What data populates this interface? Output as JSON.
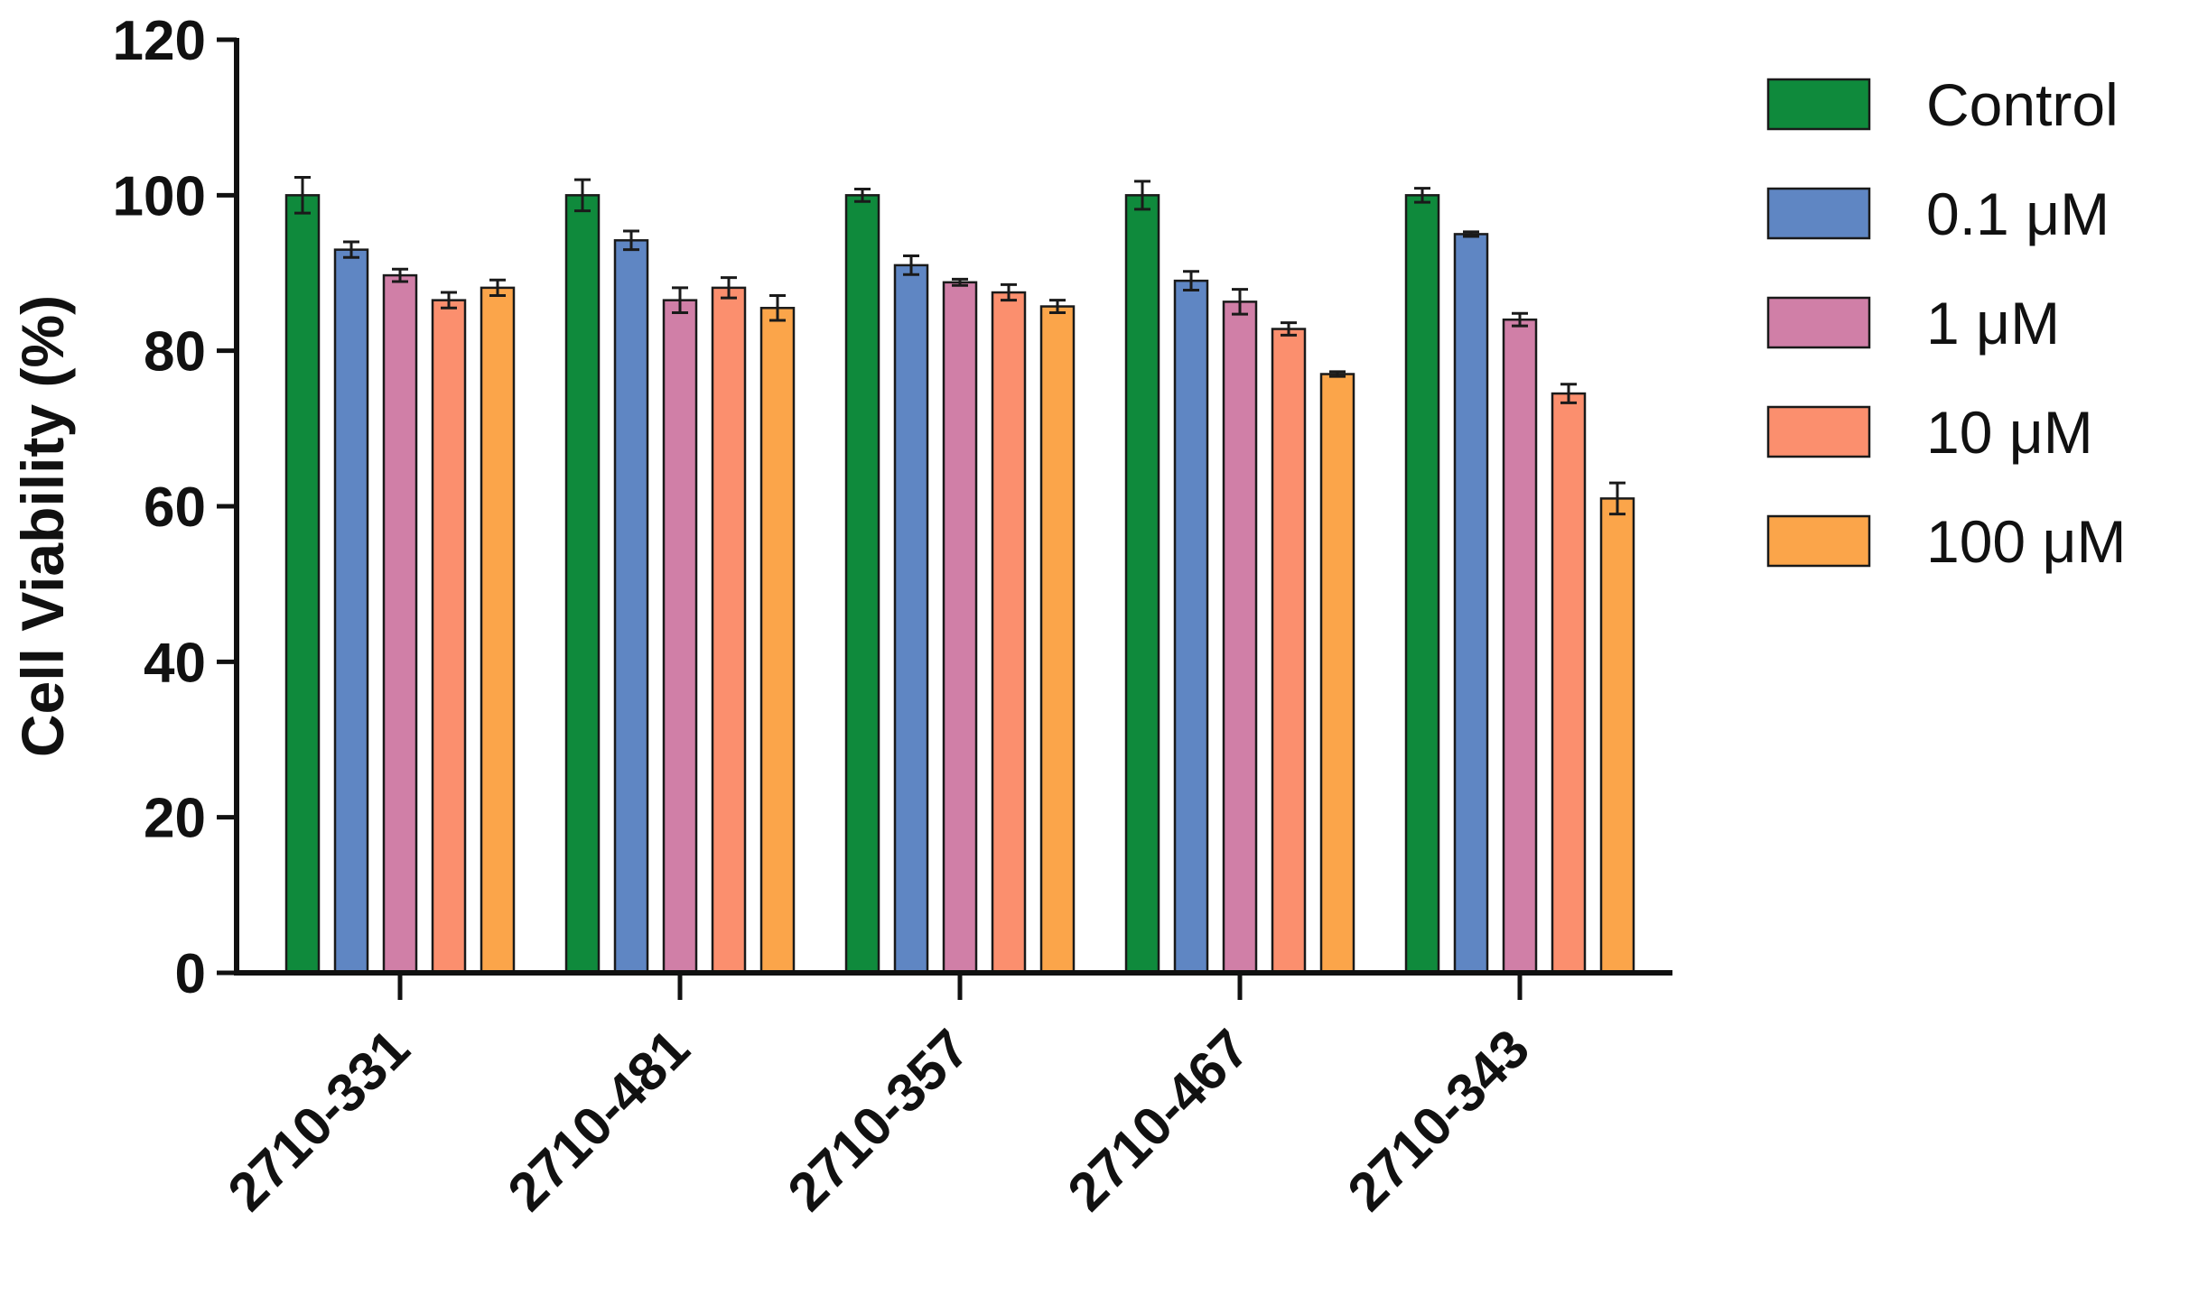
{
  "chart_data": {
    "type": "bar",
    "title": "",
    "xlabel": "",
    "ylabel": "Cell Viability (%)",
    "ylim": [
      0,
      120
    ],
    "yticks": [
      0,
      20,
      40,
      60,
      80,
      100,
      120
    ],
    "grid": false,
    "legend_position": "top-right",
    "categories": [
      "2710-331",
      "2710-481",
      "2710-357",
      "2710-467",
      "2710-343"
    ],
    "series": [
      {
        "name": "Control",
        "color": "#0f8a3c",
        "values": [
          100,
          100,
          100,
          100,
          100
        ],
        "errors": [
          2.3,
          2.0,
          0.8,
          1.8,
          0.9
        ]
      },
      {
        "name": "0.1 μM",
        "color": "#5f86c3",
        "values": [
          93,
          94.2,
          91,
          89,
          95
        ],
        "errors": [
          1.0,
          1.2,
          1.2,
          1.2,
          0.3
        ]
      },
      {
        "name": "1 μM",
        "color": "#d07fa7",
        "values": [
          89.7,
          86.5,
          88.8,
          86.3,
          84
        ],
        "errors": [
          0.8,
          1.6,
          0.4,
          1.6,
          0.8
        ]
      },
      {
        "name": "10 μM",
        "color": "#fb8f6e",
        "values": [
          86.5,
          88.1,
          87.5,
          82.8,
          74.5
        ],
        "errors": [
          1.0,
          1.3,
          1.0,
          0.8,
          1.2
        ]
      },
      {
        "name": "100 μM",
        "color": "#fba54a",
        "values": [
          88.1,
          85.5,
          85.7,
          77,
          61
        ],
        "errors": [
          1.0,
          1.6,
          0.8,
          0.3,
          2.0
        ]
      }
    ]
  }
}
